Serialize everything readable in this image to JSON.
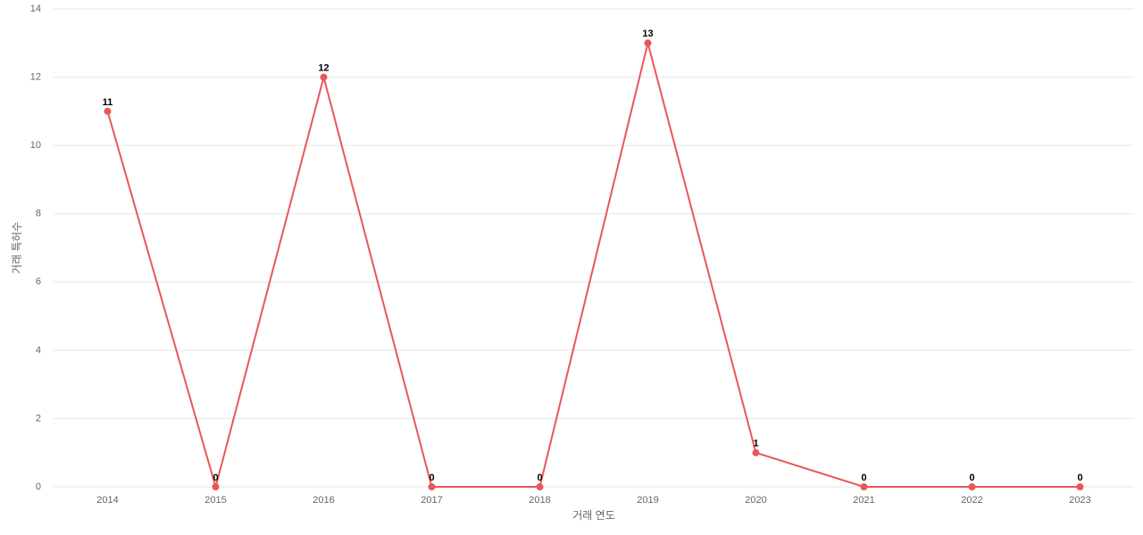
{
  "chart_data": {
    "type": "line",
    "x_label": "거래 연도",
    "y_label": "거래 특허수",
    "categories": [
      "2014",
      "2015",
      "2016",
      "2017",
      "2018",
      "2019",
      "2020",
      "2021",
      "2022",
      "2023"
    ],
    "series": [
      {
        "name": "거래 특허수",
        "color": "#e95757",
        "values": [
          11,
          0,
          12,
          0,
          0,
          13,
          1,
          0,
          0,
          0
        ]
      }
    ],
    "ylim": [
      0,
      14
    ],
    "yticks": [
      0,
      2,
      4,
      6,
      8,
      10,
      12,
      14
    ],
    "grid": true
  }
}
